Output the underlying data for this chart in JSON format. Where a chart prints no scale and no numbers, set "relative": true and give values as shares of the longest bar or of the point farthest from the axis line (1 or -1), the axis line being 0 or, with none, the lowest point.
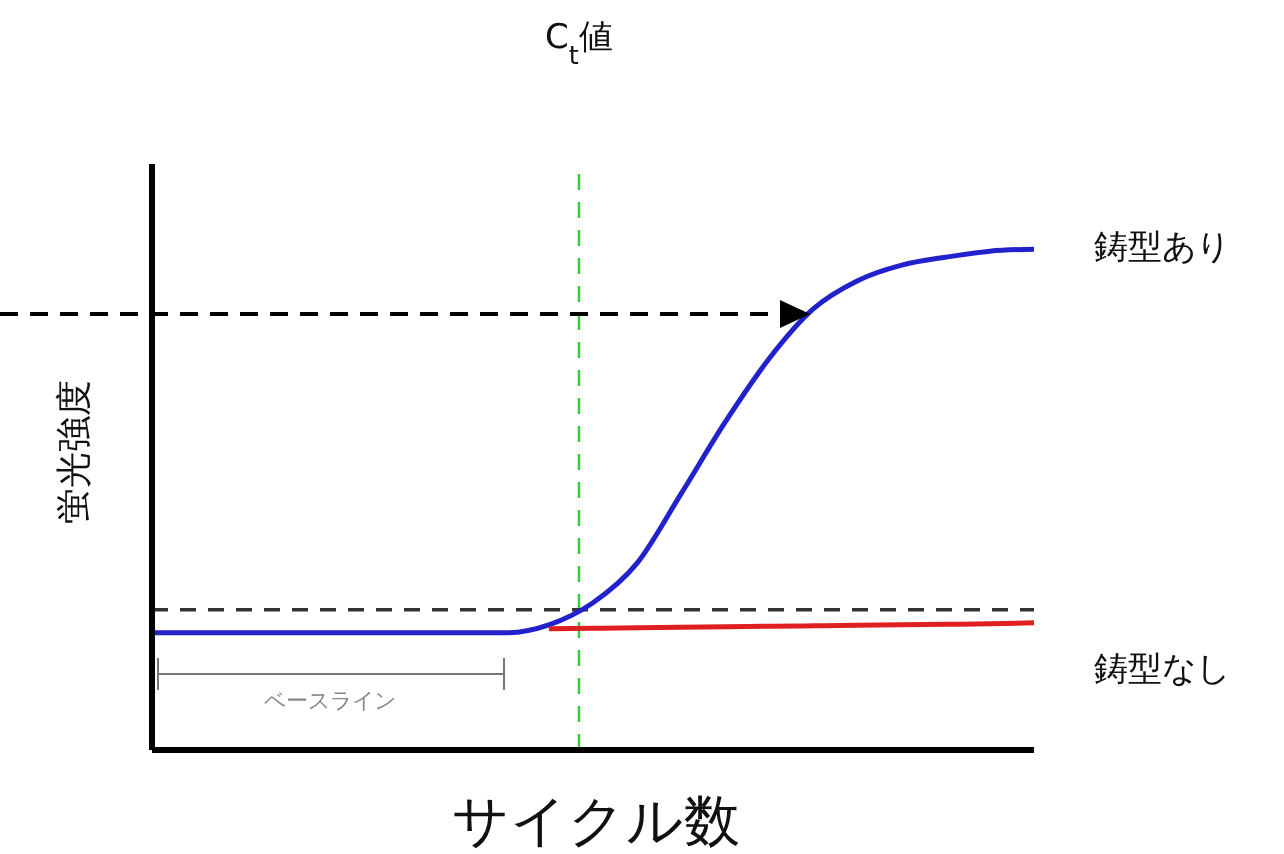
{
  "chart_data": {
    "type": "line",
    "relative": true,
    "xlabel": "サイクル数",
    "ylabel": "蛍光強度",
    "categories": [
      null,
      null,
      null,
      null,
      null,
      null,
      null,
      null,
      null,
      null,
      null,
      null,
      null,
      null,
      null,
      null,
      null,
      null,
      null,
      null,
      null
    ],
    "series": [
      {
        "name": "鋳型あり",
        "color": "#2222cc",
        "values": [
          0.234,
          0.234,
          0.234,
          0.234,
          0.234,
          0.234,
          0.234,
          0.234,
          0.234,
          0.25,
          0.294,
          0.373,
          0.512,
          0.655,
          0.782,
          0.881,
          0.937,
          0.968,
          0.984,
          0.996,
          1
        ]
      },
      {
        "name": "鋳型なし",
        "color": "#e02020",
        "values": [
          null,
          null,
          null,
          null,
          null,
          null,
          null,
          null,
          null,
          0.242,
          0.243,
          0.244,
          0.245,
          0.246,
          0.247,
          0.248,
          0.249,
          0.25,
          0.251,
          0.252,
          0.254
        ]
      }
    ],
    "ref_lines": [
      {
        "axis": "x",
        "label": "C$_{t}$値",
        "color": "#33cc33",
        "line_style": "dashed"
      },
      {
        "axis": "y",
        "value": 0.28,
        "color": "#333333",
        "line_style": "dashed"
      }
    ],
    "annotations": [
      "ベースライン"
    ]
  }
}
